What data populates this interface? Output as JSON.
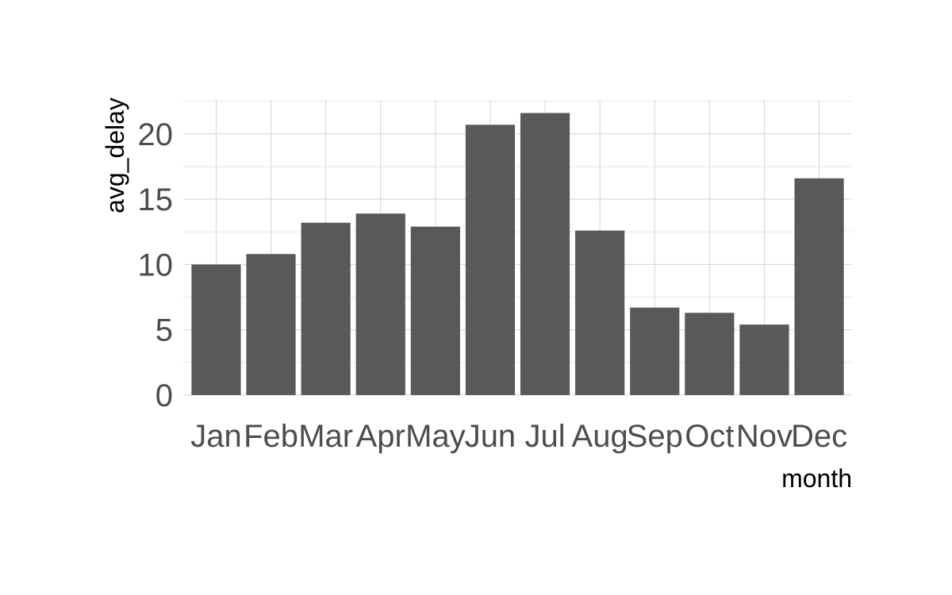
{
  "chart_data": {
    "type": "bar",
    "categories": [
      "Jan",
      "Feb",
      "Mar",
      "Apr",
      "May",
      "Jun",
      "Jul",
      "Aug",
      "Sep",
      "Oct",
      "Nov",
      "Dec"
    ],
    "values": [
      10.0,
      10.8,
      13.2,
      13.9,
      12.9,
      20.7,
      21.6,
      12.6,
      6.7,
      6.3,
      5.4,
      16.6
    ],
    "xlabel": "month",
    "ylabel": "avg_delay",
    "ylim": [
      0,
      22.6
    ],
    "yticks": [
      0,
      5,
      10,
      15,
      20
    ],
    "bar_color": "#595959",
    "grid": true,
    "theme": "minimal"
  }
}
